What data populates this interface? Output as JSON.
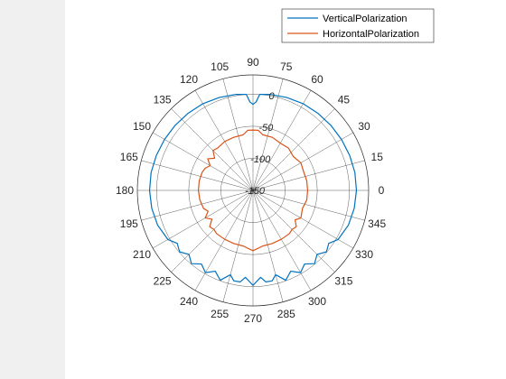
{
  "chart_data": {
    "type": "polar-line",
    "theta_unit": "degrees",
    "theta_ticks": [
      0,
      15,
      30,
      45,
      60,
      75,
      90,
      105,
      120,
      135,
      150,
      165,
      180,
      195,
      210,
      225,
      240,
      255,
      270,
      285,
      300,
      315,
      330,
      345
    ],
    "theta_tick_labels": [
      "0",
      "15",
      "30",
      "45",
      "60",
      "75",
      "90",
      "105",
      "120",
      "135",
      "150",
      "165",
      "180",
      "195",
      "210",
      "225",
      "240",
      "255",
      "270",
      "285",
      "300",
      "315",
      "330",
      "345"
    ],
    "r_ticks": [
      -150,
      -100,
      -50,
      0
    ],
    "r_tick_labels": [
      "-150",
      "-100",
      "-50",
      "0"
    ],
    "r_range": [
      -150,
      30
    ],
    "legend_position": "top-right",
    "series": [
      {
        "name": "VerticalPolarization",
        "color": "#0072BD",
        "theta": [
          0,
          10,
          20,
          30,
          40,
          50,
          60,
          70,
          80,
          86,
          88,
          90,
          92,
          94,
          100,
          110,
          120,
          130,
          140,
          150,
          160,
          170,
          180,
          190,
          200,
          210,
          215,
          220,
          225,
          230,
          235,
          240,
          245,
          250,
          255,
          258,
          262,
          265,
          270,
          275,
          278,
          282,
          285,
          290,
          295,
          300,
          305,
          310,
          315,
          320,
          325,
          330,
          340,
          350,
          360
        ],
        "r": [
          11,
          11,
          10,
          9,
          8,
          7,
          6,
          4,
          2,
          0,
          -12,
          -16,
          -12,
          0,
          2,
          4,
          6,
          7,
          8,
          9,
          10,
          11,
          11,
          10,
          8,
          3,
          -6,
          -1,
          -9,
          -1,
          -10,
          -2,
          -11,
          -1,
          -14,
          -6,
          -6,
          -14,
          -2,
          -14,
          -6,
          -6,
          -14,
          -1,
          -11,
          -2,
          -10,
          -1,
          -9,
          -1,
          -6,
          3,
          8,
          10,
          11
        ]
      },
      {
        "name": "HorizontalPolarization",
        "color": "#D95319",
        "theta": [
          0,
          10,
          20,
          30,
          40,
          50,
          60,
          70,
          80,
          85,
          90,
          95,
          100,
          110,
          120,
          130,
          135,
          140,
          145,
          150,
          155,
          160,
          170,
          180,
          190,
          200,
          205,
          210,
          215,
          220,
          225,
          230,
          240,
          250,
          260,
          270,
          280,
          290,
          300,
          310,
          315,
          320,
          325,
          330,
          340,
          350,
          360
        ],
        "r": [
          -65,
          -65,
          -66,
          -64,
          -68,
          -64,
          -65,
          -62,
          -62,
          -56,
          -56,
          -56,
          -62,
          -62,
          -62,
          -64,
          -62,
          -72,
          -64,
          -73,
          -68,
          -66,
          -65,
          -65,
          -66,
          -68,
          -73,
          -64,
          -72,
          -62,
          -64,
          -62,
          -62,
          -62,
          -62,
          -56,
          -62,
          -62,
          -62,
          -62,
          -64,
          -62,
          -70,
          -64,
          -68,
          -65,
          -65
        ]
      }
    ]
  }
}
